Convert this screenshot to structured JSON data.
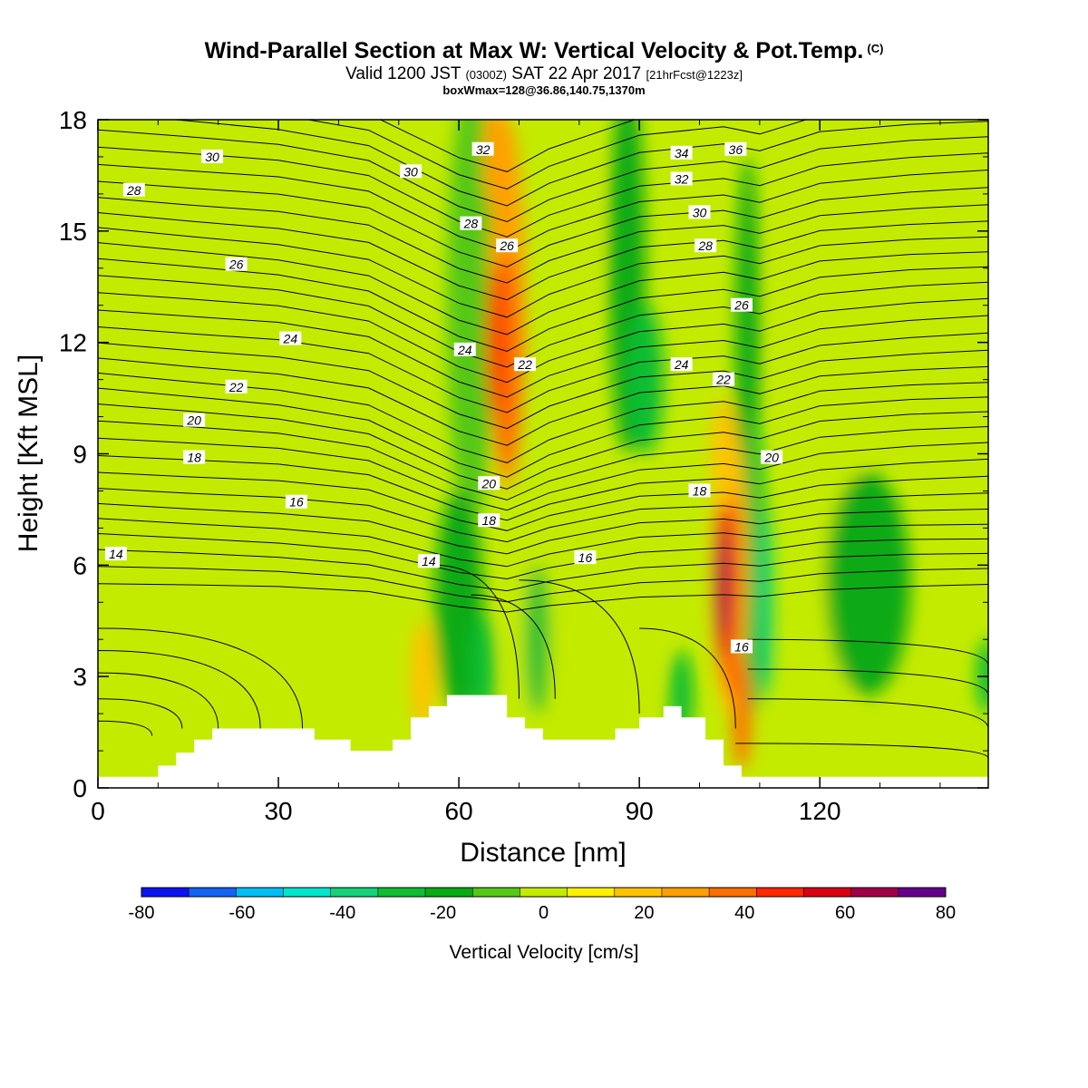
{
  "header": {
    "title": "Wind-Parallel Section at Max W: Vertical Velocity & Pot.Temp.",
    "copyright": "(C)",
    "valid_prefix": "Valid 1200 JST",
    "valid_utc": "(0300Z)",
    "valid_date": "SAT 22 Apr 2017",
    "forecast": "[21hrFcst@1223z]",
    "boxinfo": "boxWmax=128@36.86,140.75,1370m"
  },
  "chart_data": {
    "type": "heatmap",
    "xlabel": "Distance [nm]",
    "ylabel": "Height [Kft MSL]",
    "xlim": [
      0,
      148
    ],
    "ylim": [
      0,
      18
    ],
    "x_ticks": [
      0,
      30,
      60,
      90,
      120
    ],
    "y_ticks": [
      0,
      3,
      6,
      9,
      12,
      15,
      18
    ],
    "colorbar": {
      "label": "Vertical Velocity [cm/s]",
      "ticks": [
        -80,
        -60,
        -40,
        -20,
        0,
        20,
        40,
        60,
        80
      ],
      "bins": [
        -80,
        -70,
        -60,
        -50,
        -40,
        -30,
        -20,
        -10,
        0,
        10,
        20,
        30,
        40,
        50,
        60,
        70,
        80
      ],
      "colors": [
        "#0a14f0",
        "#1462f5",
        "#00bef5",
        "#00e6cd",
        "#14d278",
        "#0fbe32",
        "#0aaa14",
        "#55c814",
        "#c3eb00",
        "#fff000",
        "#ffc300",
        "#ffa000",
        "#ff6e00",
        "#ff2800",
        "#dc0014",
        "#a00046",
        "#64008c"
      ],
      "background_color": "#c3eb00"
    },
    "contours": {
      "field": "Potential Temperature",
      "labels": [
        {
          "text": "30",
          "x": 19,
          "y": 17.0
        },
        {
          "text": "28",
          "x": 6,
          "y": 16.1
        },
        {
          "text": "30",
          "x": 52,
          "y": 16.6
        },
        {
          "text": "32",
          "x": 64,
          "y": 17.2
        },
        {
          "text": "34",
          "x": 97,
          "y": 17.1
        },
        {
          "text": "36",
          "x": 106,
          "y": 17.2
        },
        {
          "text": "32",
          "x": 97,
          "y": 16.4
        },
        {
          "text": "30",
          "x": 100,
          "y": 15.5
        },
        {
          "text": "28",
          "x": 62,
          "y": 15.2
        },
        {
          "text": "28",
          "x": 101,
          "y": 14.6
        },
        {
          "text": "26",
          "x": 23,
          "y": 14.1
        },
        {
          "text": "26",
          "x": 68,
          "y": 14.6
        },
        {
          "text": "26",
          "x": 107,
          "y": 13.0
        },
        {
          "text": "24",
          "x": 32,
          "y": 12.1
        },
        {
          "text": "24",
          "x": 61,
          "y": 11.8
        },
        {
          "text": "24",
          "x": 97,
          "y": 11.4
        },
        {
          "text": "22",
          "x": 71,
          "y": 11.4
        },
        {
          "text": "22",
          "x": 23,
          "y": 10.8
        },
        {
          "text": "22",
          "x": 104,
          "y": 11.0
        },
        {
          "text": "20",
          "x": 16,
          "y": 9.9
        },
        {
          "text": "20",
          "x": 112,
          "y": 8.9
        },
        {
          "text": "20",
          "x": 65,
          "y": 8.2
        },
        {
          "text": "18",
          "x": 16,
          "y": 8.9
        },
        {
          "text": "18",
          "x": 100,
          "y": 8.0
        },
        {
          "text": "18",
          "x": 65,
          "y": 7.2
        },
        {
          "text": "16",
          "x": 33,
          "y": 7.7
        },
        {
          "text": "16",
          "x": 81,
          "y": 6.2
        },
        {
          "text": "16",
          "x": 107,
          "y": 3.8
        },
        {
          "text": "14",
          "x": 3,
          "y": 6.3
        },
        {
          "text": "14",
          "x": 55,
          "y": 6.1
        }
      ]
    },
    "terrain": {
      "x": [
        0,
        10,
        13,
        16,
        19,
        26,
        36,
        42,
        49,
        52,
        55,
        58,
        61,
        64,
        68,
        71,
        74,
        80,
        86,
        90,
        94,
        97,
        101,
        104,
        107,
        148
      ],
      "y": [
        0.3,
        0.6,
        0.95,
        1.3,
        1.6,
        1.6,
        1.3,
        1.0,
        1.3,
        1.9,
        2.2,
        2.5,
        2.5,
        2.5,
        1.9,
        1.6,
        1.3,
        1.3,
        1.6,
        1.9,
        2.2,
        1.9,
        1.3,
        0.6,
        0.3,
        0.3
      ]
    }
  }
}
